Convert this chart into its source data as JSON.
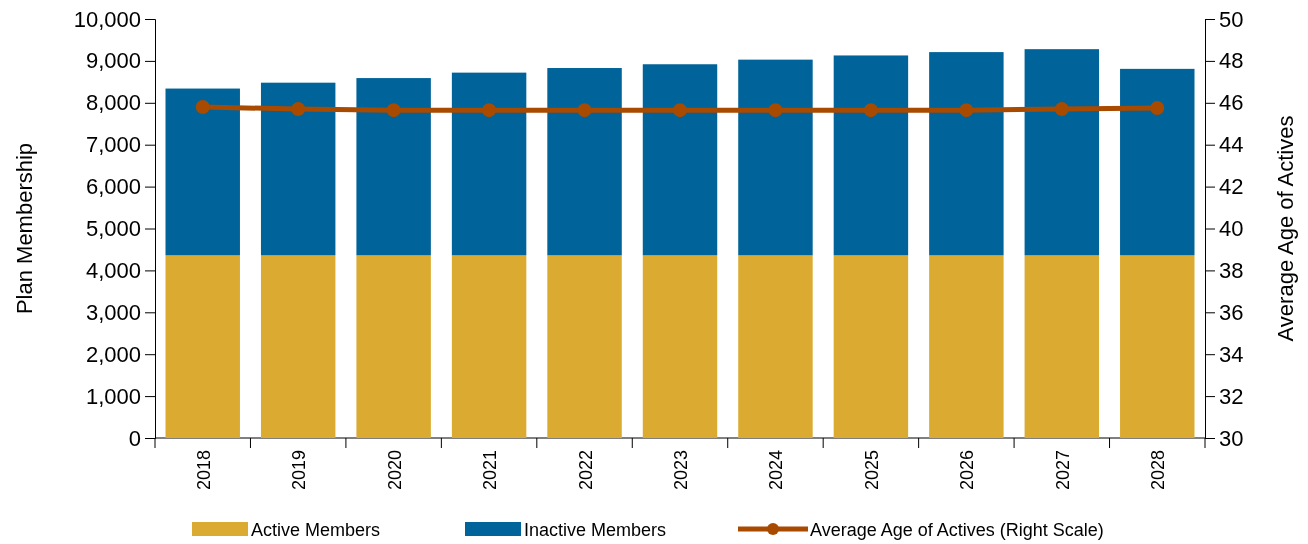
{
  "chart_data": {
    "type": "bar",
    "stacked": true,
    "ylabel": "Plan Membership",
    "y2label": "Average Age of Actives",
    "categories": [
      "2018",
      "2019",
      "2020",
      "2021",
      "2022",
      "2023",
      "2024",
      "2025",
      "2026",
      "2027",
      "2028"
    ],
    "series": [
      {
        "name": "Active Members",
        "color": "#dbab31",
        "values": [
          4360,
          4360,
          4360,
          4360,
          4360,
          4360,
          4360,
          4360,
          4360,
          4360,
          4360
        ]
      },
      {
        "name": "Inactive Members",
        "color": "#006399",
        "values": [
          3980,
          4120,
          4230,
          4360,
          4470,
          4560,
          4670,
          4770,
          4850,
          4920,
          4450
        ]
      },
      {
        "name": "Average Age of Actives (Right Scale)",
        "type": "line",
        "axis": "y2",
        "color": "#a84a00",
        "marker": "circle",
        "values": [
          45.8,
          45.7,
          45.65,
          45.65,
          45.65,
          45.65,
          45.65,
          45.65,
          45.65,
          45.7,
          45.75
        ]
      }
    ],
    "ylim": [
      0,
      10000
    ],
    "yticks": [
      {
        "value": 0,
        "label": "0"
      },
      {
        "value": 1000,
        "label": "1,000"
      },
      {
        "value": 2000,
        "label": "2,000"
      },
      {
        "value": 3000,
        "label": "3,000"
      },
      {
        "value": 4000,
        "label": "4,000"
      },
      {
        "value": 5000,
        "label": "5,000"
      },
      {
        "value": 6000,
        "label": "6,000"
      },
      {
        "value": 7000,
        "label": "7,000"
      },
      {
        "value": 8000,
        "label": "8,000"
      },
      {
        "value": 9000,
        "label": "9,000"
      },
      {
        "value": 10000,
        "label": "10,000"
      }
    ],
    "y2lim": [
      30,
      50
    ],
    "y2ticks": [
      30,
      32,
      34,
      36,
      38,
      40,
      42,
      44,
      46,
      48,
      50
    ],
    "legend": "bottom",
    "grid": false
  }
}
